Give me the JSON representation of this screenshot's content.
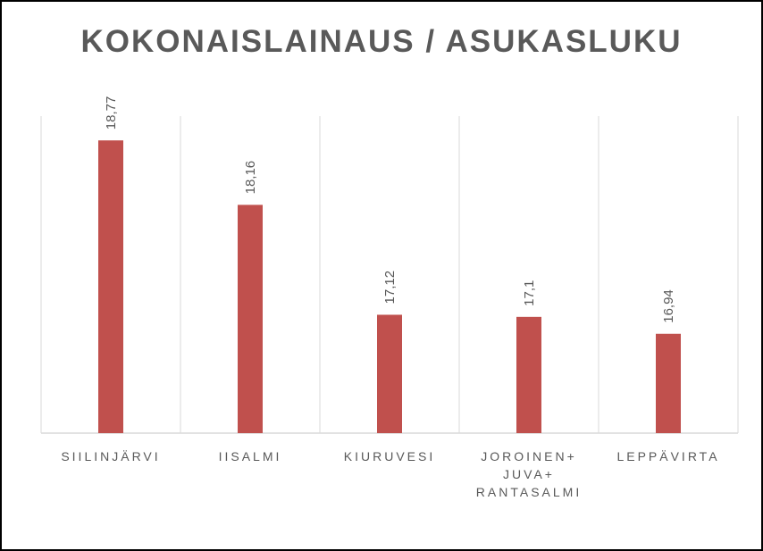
{
  "chart_data": {
    "type": "bar",
    "title": "KOKONAISLAINAUS / ASUKASLUKU",
    "categories": [
      [
        "SIILINJÄRVI"
      ],
      [
        "IISALMI"
      ],
      [
        "KIURUVESI"
      ],
      [
        "JOROINEN+",
        "JUVA+",
        "RANTASALMI"
      ],
      [
        "LEPPÄVIRTA"
      ]
    ],
    "values": [
      18.77,
      18.16,
      17.12,
      17.1,
      16.94
    ],
    "data_labels": [
      "18,77",
      "18,16",
      "17,12",
      "17,1",
      "16,94"
    ],
    "ylim": [
      16,
      19
    ],
    "grid": "vertical category separators",
    "legend": "none",
    "colors": {
      "bar": "#c0504d",
      "grid": "#d9d9d9",
      "text": "#595959"
    }
  }
}
